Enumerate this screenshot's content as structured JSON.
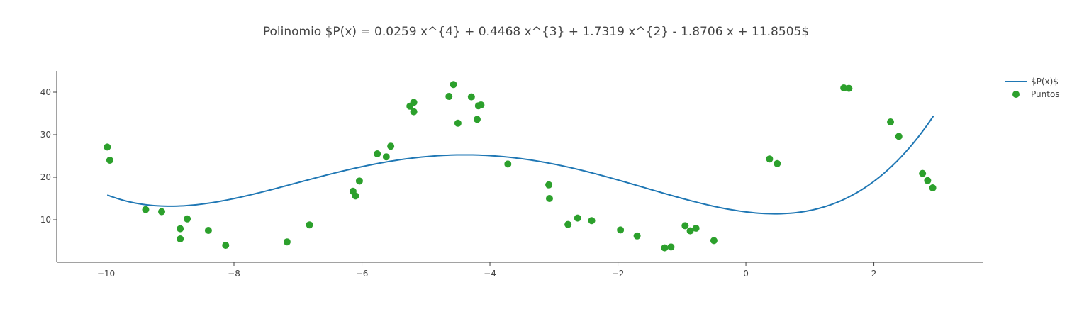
{
  "chart_data": {
    "type": "scatter",
    "title": "Polinomio $P(x) = 0.0259 x^{4} + 0.4468 x^{3} + 1.7319 x^{2} - 1.8706 x + 11.8505$",
    "xlabel": "",
    "ylabel": "",
    "xlim": [
      -10.77,
      3.7
    ],
    "ylim": [
      0,
      45
    ],
    "x_ticks": [
      -10,
      -8,
      -6,
      -4,
      -2,
      0,
      2
    ],
    "x_tick_labels": [
      "−10",
      "−8",
      "−6",
      "−4",
      "−2",
      "0",
      "2"
    ],
    "y_ticks": [
      10,
      20,
      30,
      40
    ],
    "y_tick_labels": [
      "10",
      "20",
      "30",
      "40"
    ],
    "grid": false,
    "legend_position": "top-right",
    "series": [
      {
        "name": "$P(x)$",
        "kind": "line",
        "color": "#1f77b4",
        "coefficients": [
          0.0259,
          0.4468,
          1.7319,
          -1.8706,
          11.8505
        ],
        "x_range": [
          -9.98,
          2.93
        ]
      },
      {
        "name": "Puntos",
        "kind": "markers",
        "color": "#2ca02c",
        "points": [
          [
            -9.98,
            27.1
          ],
          [
            -9.94,
            24.0
          ],
          [
            -9.38,
            12.4
          ],
          [
            -9.13,
            11.9
          ],
          [
            -8.84,
            7.9
          ],
          [
            -8.84,
            5.5
          ],
          [
            -8.73,
            10.2
          ],
          [
            -8.4,
            7.5
          ],
          [
            -8.13,
            4.0
          ],
          [
            -7.17,
            4.8
          ],
          [
            -6.82,
            8.8
          ],
          [
            -6.14,
            16.7
          ],
          [
            -6.1,
            15.6
          ],
          [
            -6.04,
            19.1
          ],
          [
            -5.76,
            25.5
          ],
          [
            -5.62,
            24.8
          ],
          [
            -5.55,
            27.3
          ],
          [
            -5.25,
            36.7
          ],
          [
            -5.19,
            37.6
          ],
          [
            -5.19,
            35.4
          ],
          [
            -4.64,
            39.0
          ],
          [
            -4.57,
            41.8
          ],
          [
            -4.5,
            32.7
          ],
          [
            -4.29,
            38.9
          ],
          [
            -4.2,
            33.6
          ],
          [
            -4.18,
            36.8
          ],
          [
            -4.14,
            37.0
          ],
          [
            -3.72,
            23.1
          ],
          [
            -3.08,
            18.2
          ],
          [
            -3.07,
            15.0
          ],
          [
            -2.78,
            8.9
          ],
          [
            -2.63,
            10.4
          ],
          [
            -2.41,
            9.8
          ],
          [
            -1.96,
            7.6
          ],
          [
            -1.7,
            6.2
          ],
          [
            -1.27,
            3.4
          ],
          [
            -1.17,
            3.6
          ],
          [
            -0.95,
            8.6
          ],
          [
            -0.87,
            7.4
          ],
          [
            -0.78,
            8.0
          ],
          [
            -0.5,
            5.1
          ],
          [
            0.37,
            24.3
          ],
          [
            0.49,
            23.2
          ],
          [
            1.53,
            41.0
          ],
          [
            1.61,
            40.9
          ],
          [
            2.26,
            33.0
          ],
          [
            2.39,
            29.6
          ],
          [
            2.76,
            20.9
          ],
          [
            2.84,
            19.2
          ],
          [
            2.92,
            17.5
          ]
        ]
      }
    ]
  }
}
